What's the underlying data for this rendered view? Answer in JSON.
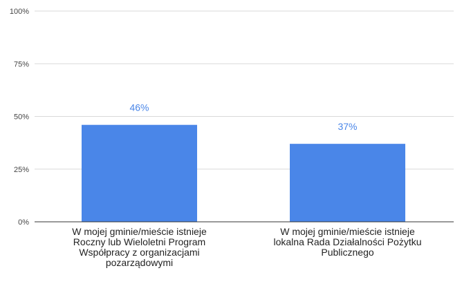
{
  "chart_data": {
    "type": "bar",
    "title": "",
    "xlabel": "",
    "ylabel": "",
    "categories": [
      "W mojej gminie/mieście istnieje Roczny lub Wieloletni Program Współpracy z organizacjami pozarządowymi",
      "W mojej gminie/mieście istnieje lokalna Rada Działalności Pożytku Publicznego"
    ],
    "category_lines": [
      [
        "W mojej gminie/mieście istnieje",
        "Roczny lub Wieloletni Program",
        "Współpracy z organizacjami",
        "pozarządowymi"
      ],
      [
        "W mojej gminie/mieście istnieje",
        "lokalna Rada Działalności Pożytku",
        "Publicznego"
      ]
    ],
    "values": [
      46,
      37
    ],
    "data_labels": [
      "46%",
      "37%"
    ],
    "ylim": [
      0,
      100
    ],
    "yticks": [
      0,
      25,
      50,
      75,
      100
    ],
    "ytick_labels": [
      "0%",
      "25%",
      "50%",
      "75%",
      "100%"
    ],
    "grid": true,
    "legend": "none",
    "bar_color": "#4a86e8",
    "label_color": "#4a86e8"
  }
}
